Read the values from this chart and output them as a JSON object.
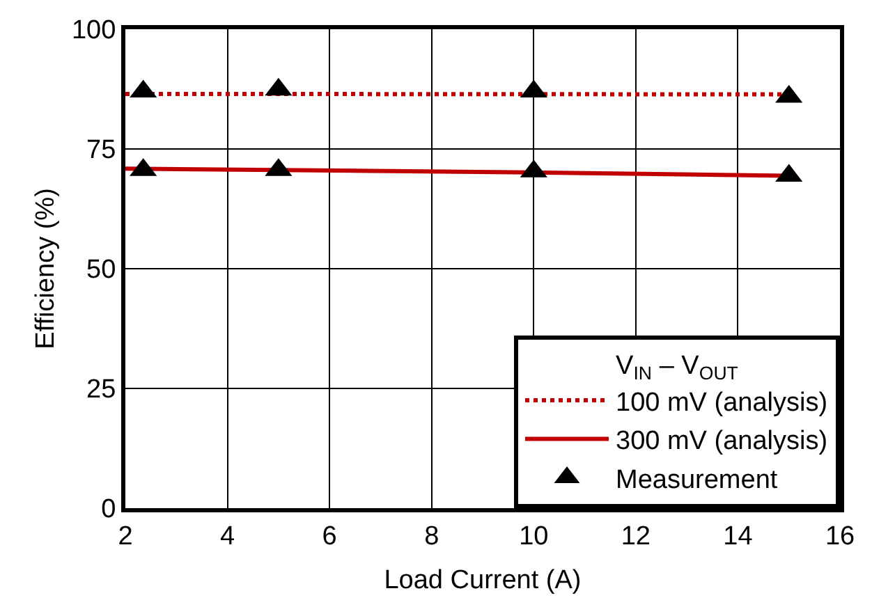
{
  "chart_data": {
    "type": "line",
    "xlabel": "Load Current (A)",
    "ylabel": "Efficiency (%)",
    "legend_title": "V$_{IN}$ – V$_{OUT}$",
    "xlim": [
      2,
      16
    ],
    "xticks": [
      2,
      4,
      6,
      8,
      10,
      12,
      14,
      16
    ],
    "ylim": [
      0,
      100
    ],
    "yticks": [
      0,
      25,
      50,
      75,
      100
    ],
    "grid": true,
    "legend": "bottom right",
    "series": [
      {
        "name": "100 mV (analysis)",
        "color": "#c00000",
        "line_style": "dotted",
        "marker": "none",
        "x": [
          2,
          15
        ],
        "values": [
          86.5,
          86.4
        ]
      },
      {
        "name": "300 mV (analysis)",
        "color": "#c00000",
        "line_style": "solid",
        "marker": "none",
        "x": [
          2,
          5,
          10,
          15
        ],
        "values": [
          70.9,
          70.6,
          70.1,
          69.4
        ]
      },
      {
        "name": "Measurement",
        "color": "#000000",
        "type": "scatter",
        "marker": "triangle",
        "x": [
          2.35,
          5,
          10,
          15,
          2.35,
          5,
          10,
          15
        ],
        "values": [
          87,
          87.4,
          87,
          85.9,
          70.6,
          70.6,
          70.3,
          69.4
        ]
      }
    ]
  }
}
